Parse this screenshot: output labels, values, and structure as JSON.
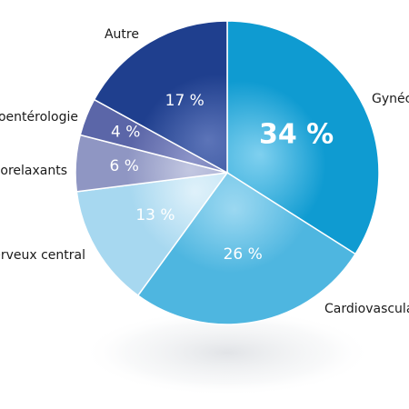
{
  "chart_data": {
    "type": "pie",
    "slices": [
      {
        "label": "Gynécologie",
        "value": 34,
        "value_label": "34 %",
        "color": "#0f9bd1",
        "highlight": "#7fd0ef"
      },
      {
        "label": "Cardiovasculaire",
        "value": 26,
        "value_label": "26 %",
        "color": "#4eb6e0",
        "highlight": "#9bd8f1"
      },
      {
        "label": "Système nerveux central",
        "value": 13,
        "value_label": "13 %",
        "color": "#a7d8f0",
        "highlight": "#dff1fa"
      },
      {
        "label": "Myorelaxants",
        "value": 6,
        "value_label": "6 %",
        "color": "#8f96c3",
        "highlight": "#c2c7e1"
      },
      {
        "label": "Gastroentérologie",
        "value": 4,
        "value_label": "4 %",
        "color": "#5b66a8",
        "highlight": "#8c94c8"
      },
      {
        "label": "Autre",
        "value": 17,
        "value_label": "17 %",
        "color": "#1f3f8e",
        "highlight": "#5c74b8"
      }
    ],
    "title": "",
    "legend": "none"
  }
}
